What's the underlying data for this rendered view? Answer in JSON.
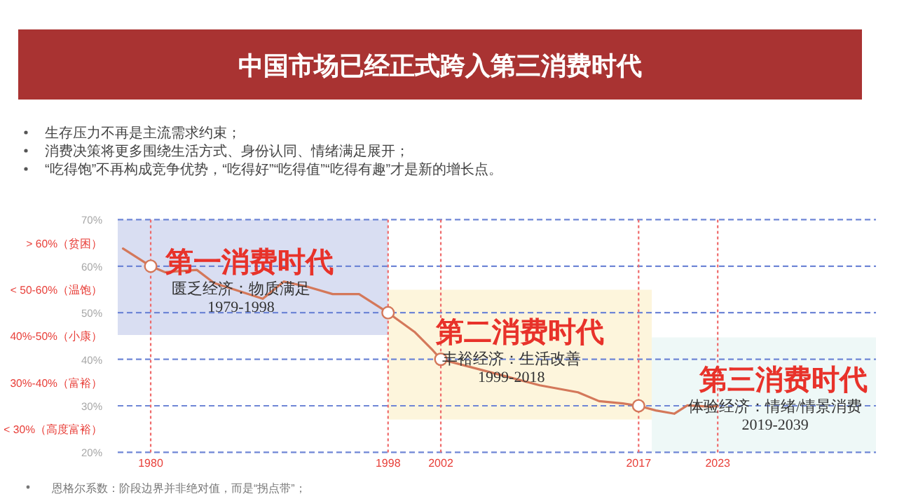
{
  "chart_data": {
    "type": "line",
    "title": "中国市场已经正式跨入第三消费时代",
    "annotations": [
      "生存压力不再是主流需求约束；",
      "消费决策将更多围绕生活方式、身份认同、情绪满足展开；",
      "“吃得饱”不再构成竞争优势，“吃得好”“吃得值”“吃得有趣”才是新的增长点。",
      "匮乏经济：物质满足",
      "1979-1998",
      "丰裕经济：生活改善",
      "1999-2018",
      "体验经济：情绪/情景消费",
      "2019-2039",
      "恩格尔系数：阶段边界并非绝对值，而是“拐点带”；"
    ],
    "xlim": [
      1977.5,
      2035
    ],
    "ylim": [
      20,
      70
    ],
    "xticks": [
      1980,
      1998,
      2002,
      2017,
      2023
    ],
    "yticks": [
      {
        "value": 70,
        "label": "70%"
      },
      {
        "value": 65,
        "label": "> 60%（贫困）"
      },
      {
        "value": 60,
        "label": "60%"
      },
      {
        "value": 55,
        "label": "< 50-60%（温饱）"
      },
      {
        "value": 50,
        "label": "50%"
      },
      {
        "value": 45,
        "label": "40%-50%（小康）"
      },
      {
        "value": 40,
        "label": "40%"
      },
      {
        "value": 35,
        "label": "30%-40%（富裕）"
      },
      {
        "value": 30,
        "label": "30%"
      },
      {
        "value": 25,
        "label": "< 30%（高度富裕）"
      },
      {
        "value": 20,
        "label": "20%"
      }
    ],
    "bands": [
      {
        "axis": "x",
        "from": 1977.5,
        "to": 1998,
        "color": "#d9def2",
        "label": "第一消费时代"
      },
      {
        "axis": "x",
        "from": 1998,
        "to": 2018,
        "color": "#fdf5dc",
        "label": "第二消费时代"
      },
      {
        "axis": "x",
        "from": 2018,
        "to": 2035,
        "color": "#eef8f7",
        "label": "第三消费时代"
      }
    ],
    "ref_lines": [
      {
        "axis": "y",
        "value": 60,
        "color": "#6f86d6",
        "line_style": "dashed"
      },
      {
        "axis": "y",
        "value": 50,
        "color": "#6f86d6",
        "line_style": "dashed"
      },
      {
        "axis": "y",
        "value": 40,
        "color": "#6f86d6",
        "line_style": "dashed"
      },
      {
        "axis": "y",
        "value": 30,
        "color": "#6f86d6",
        "line_style": "dashed"
      },
      {
        "axis": "x",
        "value": 1980,
        "color": "#ef6a6a",
        "line_style": "dotted"
      },
      {
        "axis": "x",
        "value": 1998,
        "color": "#ef6a6a",
        "line_style": "dotted"
      },
      {
        "axis": "x",
        "value": 2002,
        "color": "#ef6a6a",
        "line_style": "dotted"
      },
      {
        "axis": "x",
        "value": 2017,
        "color": "#ef6a6a",
        "line_style": "dotted"
      },
      {
        "axis": "x",
        "value": 2023,
        "color": "#ef6a6a",
        "line_style": "dotted"
      }
    ],
    "series": [
      {
        "type": "line",
        "color": "#d4785a",
        "marker": "none",
        "x": [
          1977.9,
          1980,
          1981.1,
          1983.5,
          1984.8,
          1988.5,
          1990.1,
          1992,
          1993.8,
          1995.8,
          1998,
          2000,
          2001.4,
          2002,
          2005.5,
          2009.5,
          2012.4,
          2014,
          2015.8,
          2017,
          2018.3,
          2019.7,
          2020.7,
          2022.5,
          2023
        ],
        "values": [
          63.8,
          60,
          58.7,
          59.2,
          56.4,
          53,
          56.7,
          55.5,
          54,
          54,
          50,
          45.9,
          41.9,
          40,
          37.4,
          34.4,
          32.9,
          31,
          30.5,
          30,
          29,
          28.3,
          30.1,
          29.8,
          30
        ]
      },
      {
        "type": "scatter",
        "color": "#d4785a",
        "marker": "circle",
        "x": [
          1980,
          1998,
          2002,
          2017
        ],
        "values": [
          60,
          50,
          40,
          30
        ]
      }
    ]
  }
}
